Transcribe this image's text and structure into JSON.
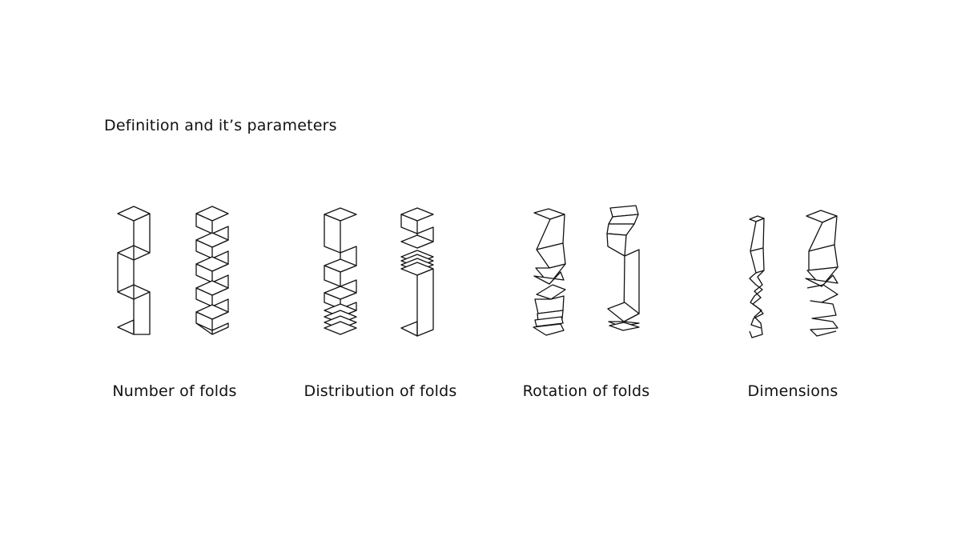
{
  "title": "Definition and it’s parameters",
  "groups": [
    {
      "caption": "Number of folds"
    },
    {
      "caption": "Distribution of folds"
    },
    {
      "caption": "Rotation of folds"
    },
    {
      "caption": "Dimensions"
    }
  ]
}
